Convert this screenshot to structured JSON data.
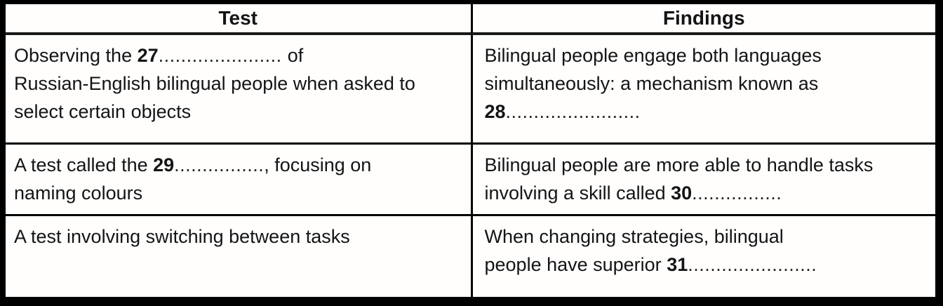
{
  "table": {
    "headers": {
      "test": "Test",
      "findings": "Findings"
    },
    "rows": [
      {
        "test": {
          "l1a": "Observing the ",
          "l1num": "27",
          "l1dots": "......................",
          "l1b": "of",
          "l2": "Russian-English bilingual people when asked to",
          "l3": "select certain objects"
        },
        "findings": {
          "l1": "Bilingual people engage both languages",
          "l2": "simultaneously: a mechanism known as",
          "l3num": "28",
          "l3dots": "........................"
        }
      },
      {
        "test": {
          "l1a": "A test called the ",
          "l1num": "29",
          "l1dots": "................",
          "l1b": ", focusing on",
          "l2": "naming colours"
        },
        "findings": {
          "l1": "Bilingual people are more able to handle tasks",
          "l2a": "involving a skill called ",
          "l2num": "30",
          "l2dots": "................"
        }
      },
      {
        "test": {
          "l1": "A test involving switching between tasks"
        },
        "findings": {
          "l1": "When changing strategies, bilingual",
          "l2a": "people have superior ",
          "l2num": "31",
          "l2dots": "......................."
        }
      }
    ]
  }
}
